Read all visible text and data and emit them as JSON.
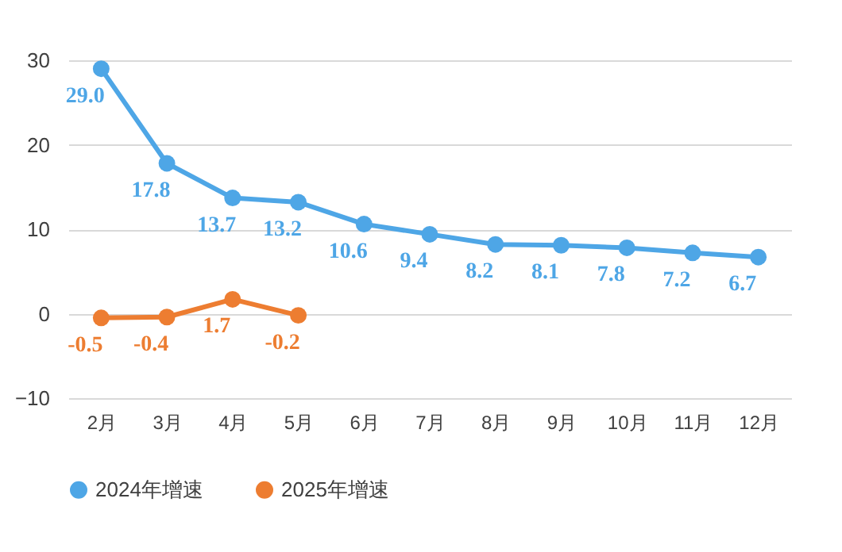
{
  "chart_data": {
    "type": "line",
    "categories": [
      "2月",
      "3月",
      "4月",
      "5月",
      "6月",
      "7月",
      "8月",
      "9月",
      "10月",
      "11月",
      "12月"
    ],
    "series": [
      {
        "name": "2024年增速",
        "color": "#4ea6e6",
        "values": [
          29.0,
          17.8,
          13.7,
          13.2,
          10.6,
          9.4,
          8.2,
          8.1,
          7.8,
          7.2,
          6.7
        ],
        "value_labels": [
          "29.0",
          "17.8",
          "13.7",
          "13.2",
          "10.6",
          "9.4",
          "8.2",
          "8.1",
          "7.8",
          "7.2",
          "6.7"
        ]
      },
      {
        "name": "2025年增速",
        "color": "#ed7d31",
        "values": [
          -0.5,
          -0.4,
          1.7,
          -0.2,
          null,
          null,
          null,
          null,
          null,
          null,
          null
        ],
        "value_labels": [
          "-0.5",
          "-0.4",
          "1.7",
          "-0.2",
          null,
          null,
          null,
          null,
          null,
          null,
          null
        ]
      }
    ],
    "ylim": [
      -10,
      30
    ],
    "yticks": [
      -10,
      0,
      10,
      20,
      30
    ],
    "grid": "y",
    "legend": "bottom",
    "marker": "circle",
    "line_style": "solid"
  }
}
